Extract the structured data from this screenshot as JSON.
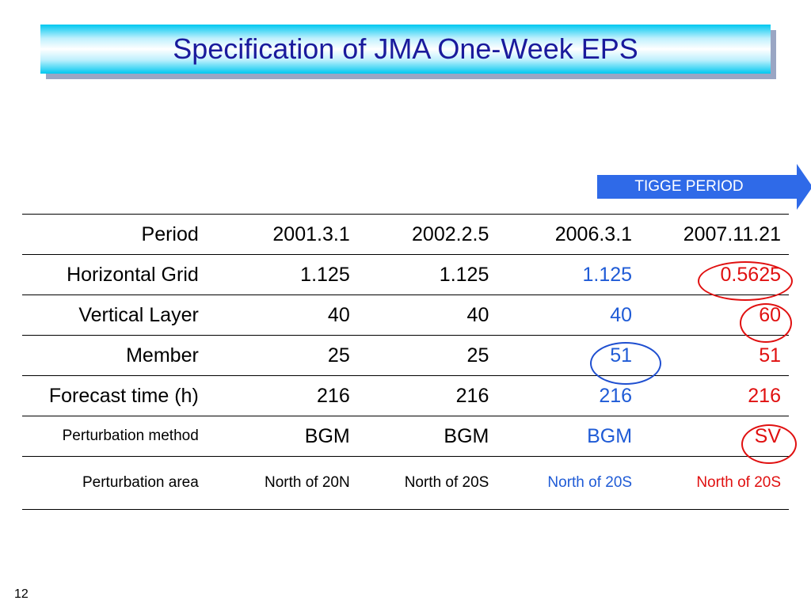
{
  "slide": {
    "title": "Specification of JMA One-Week EPS",
    "page_number": "12"
  },
  "tigge_label": "TIGGE PERIOD",
  "colors": {
    "title_text": "#1a1a9c",
    "title_gradient": "#00c8f0",
    "tigge_arrow": "#2f6ae8",
    "blue_values": "#1f5bd6",
    "red_values": "#e01010"
  },
  "table": {
    "rows": [
      {
        "label": "Period",
        "values": [
          "2001.3.1",
          "2002.2.5",
          "2006.3.1",
          "2007.11.21"
        ]
      },
      {
        "label": "Horizontal Grid",
        "values": [
          "1.125",
          "1.125",
          "1.125",
          "0.5625"
        ]
      },
      {
        "label": "Vertical Layer",
        "values": [
          "40",
          "40",
          "40",
          "60"
        ]
      },
      {
        "label": "Member",
        "values": [
          "25",
          "25",
          "51",
          "51"
        ]
      },
      {
        "label": "Forecast time (h)",
        "values": [
          "216",
          "216",
          "216",
          "216"
        ]
      },
      {
        "label": "Perturbation method",
        "values": [
          "BGM",
          "BGM",
          "BGM",
          "SV"
        ]
      },
      {
        "label": "Perturbation area",
        "values": [
          "North of 20N",
          "North of 20S",
          "North of 20S",
          "North of 20S"
        ]
      }
    ]
  }
}
